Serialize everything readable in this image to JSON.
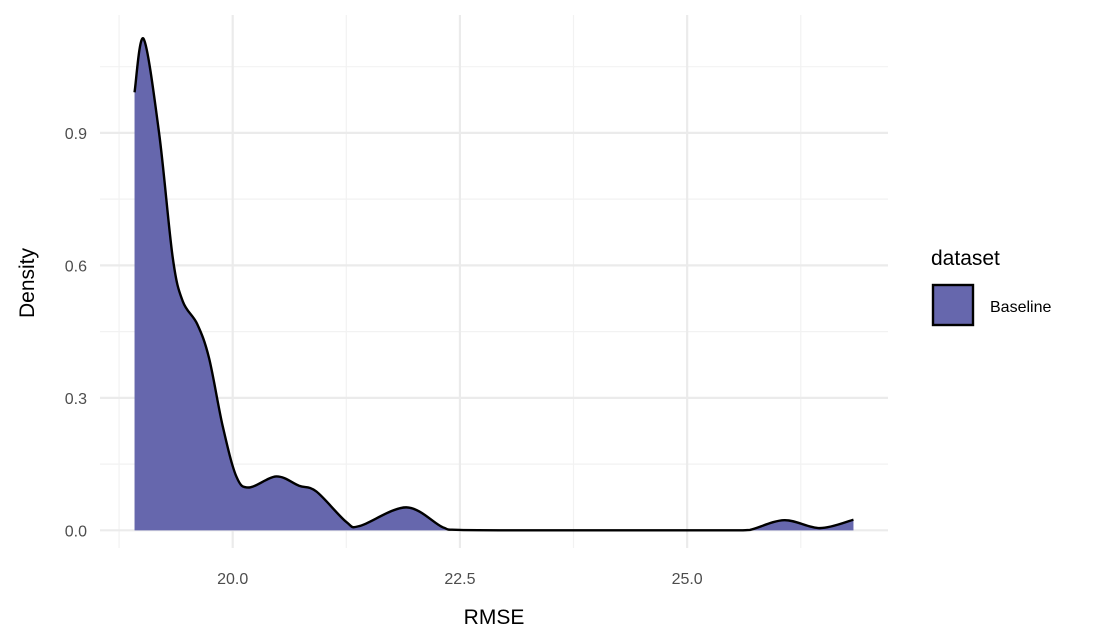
{
  "chart_data": {
    "type": "area",
    "title": "",
    "xlabel": "RMSE",
    "ylabel": "Density",
    "xlim": [
      18.54,
      27.21
    ],
    "ylim": [
      -0.04,
      1.167
    ],
    "x_ticks": [
      20.0,
      22.5,
      25.0
    ],
    "x_tick_labels": [
      "20.0",
      "22.5",
      "25.0"
    ],
    "y_ticks": [
      0.0,
      0.3,
      0.6,
      0.9
    ],
    "y_tick_labels": [
      "0.0",
      "0.3",
      "0.6",
      "0.9"
    ],
    "grid": true,
    "legend": {
      "title": "dataset",
      "placement": "right",
      "entries": [
        "Baseline"
      ]
    },
    "colors": {
      "fill": "#6667ad",
      "line": "#000000",
      "grid": "#ebebeb"
    },
    "series": [
      {
        "name": "Baseline",
        "x": [
          18.92,
          19.02,
          19.19,
          19.34,
          19.45,
          19.61,
          19.74,
          19.89,
          20.04,
          20.18,
          20.48,
          20.73,
          20.92,
          21.25,
          21.4,
          21.91,
          22.31,
          22.5,
          23.5,
          24.5,
          25.5,
          25.69,
          26.07,
          26.46,
          26.83
        ],
        "y": [
          0.992,
          1.113,
          0.9,
          0.618,
          0.519,
          0.467,
          0.39,
          0.236,
          0.122,
          0.097,
          0.122,
          0.101,
          0.088,
          0.019,
          0.01,
          0.052,
          0.007,
          0.001,
          0.0,
          0.0,
          0.0,
          0.001,
          0.023,
          0.005,
          0.024
        ]
      }
    ]
  }
}
